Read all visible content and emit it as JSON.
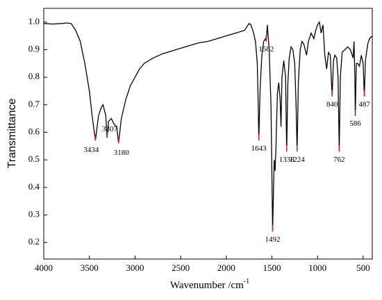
{
  "chart_data": {
    "type": "line",
    "ylabel": "Transmittance",
    "xlabel": "Wavenumber /cm",
    "xlabel_sup": "-1",
    "xlim": [
      4000,
      400
    ],
    "ylim": [
      0.14,
      1.05
    ],
    "xticks": [
      4000,
      3500,
      3000,
      2500,
      2000,
      1500,
      1000,
      500
    ],
    "yticks": [
      0.2,
      0.3,
      0.4,
      0.5,
      0.6,
      0.7,
      0.8,
      0.9,
      {
        "value": 1,
        "label": "1.0"
      }
    ],
    "series": [
      {
        "color": "#000000",
        "x": [
          4000,
          3900,
          3800,
          3750,
          3700,
          3650,
          3600,
          3550,
          3500,
          3470,
          3434,
          3400,
          3370,
          3350,
          3320,
          3307,
          3290,
          3260,
          3230,
          3200,
          3180,
          3150,
          3100,
          3050,
          3000,
          2950,
          2900,
          2800,
          2700,
          2600,
          2500,
          2400,
          2300,
          2200,
          2100,
          2000,
          1900,
          1800,
          1750,
          1730,
          1700,
          1680,
          1660,
          1650,
          1643,
          1630,
          1610,
          1590,
          1570,
          1562,
          1550,
          1530,
          1510,
          1500,
          1492,
          1485,
          1475,
          1465,
          1455,
          1440,
          1425,
          1410,
          1400,
          1390,
          1370,
          1350,
          1338,
          1325,
          1310,
          1290,
          1270,
          1250,
          1235,
          1224,
          1210,
          1190,
          1170,
          1150,
          1120,
          1100,
          1070,
          1040,
          1020,
          1000,
          980,
          960,
          940,
          920,
          900,
          880,
          860,
          840,
          825,
          810,
          790,
          775,
          762,
          750,
          730,
          700,
          670,
          640,
          610,
          600,
          590,
          586,
          575,
          560,
          540,
          520,
          500,
          487,
          475,
          450,
          430,
          400
        ],
        "values": [
          0.995,
          0.993,
          0.995,
          0.997,
          0.995,
          0.97,
          0.93,
          0.85,
          0.75,
          0.66,
          0.57,
          0.66,
          0.69,
          0.7,
          0.66,
          0.58,
          0.64,
          0.65,
          0.63,
          0.62,
          0.56,
          0.65,
          0.72,
          0.77,
          0.8,
          0.83,
          0.85,
          0.87,
          0.885,
          0.895,
          0.905,
          0.915,
          0.925,
          0.93,
          0.94,
          0.95,
          0.96,
          0.97,
          0.995,
          0.99,
          0.96,
          0.93,
          0.85,
          0.7,
          0.57,
          0.75,
          0.88,
          0.93,
          0.94,
          0.93,
          0.99,
          0.9,
          0.7,
          0.45,
          0.24,
          0.35,
          0.5,
          0.46,
          0.55,
          0.74,
          0.78,
          0.72,
          0.62,
          0.8,
          0.86,
          0.8,
          0.53,
          0.78,
          0.87,
          0.91,
          0.9,
          0.85,
          0.7,
          0.53,
          0.78,
          0.9,
          0.93,
          0.92,
          0.88,
          0.93,
          0.96,
          0.94,
          0.97,
          0.99,
          1.0,
          0.96,
          0.99,
          0.88,
          0.83,
          0.89,
          0.88,
          0.73,
          0.86,
          0.88,
          0.87,
          0.8,
          0.53,
          0.8,
          0.89,
          0.9,
          0.91,
          0.9,
          0.87,
          0.93,
          0.78,
          0.66,
          0.85,
          0.85,
          0.84,
          0.88,
          0.85,
          0.73,
          0.86,
          0.92,
          0.94,
          0.95
        ]
      }
    ],
    "peaks": [
      {
        "x": 3434,
        "y": 0.57
      },
      {
        "x": 3307,
        "y": 0.58
      },
      {
        "x": 3180,
        "y": 0.56
      },
      {
        "x": 1643,
        "y": 0.57
      },
      {
        "x": 1562,
        "y": 0.93
      },
      {
        "x": 1492,
        "y": 0.24
      },
      {
        "x": 1338,
        "y": 0.53
      },
      {
        "x": 1224,
        "y": 0.53
      },
      {
        "x": 840,
        "y": 0.73
      },
      {
        "x": 762,
        "y": 0.53
      },
      {
        "x": 586,
        "y": 0.66
      },
      {
        "x": 487,
        "y": 0.73
      }
    ],
    "peak_color": "#e8191f"
  }
}
